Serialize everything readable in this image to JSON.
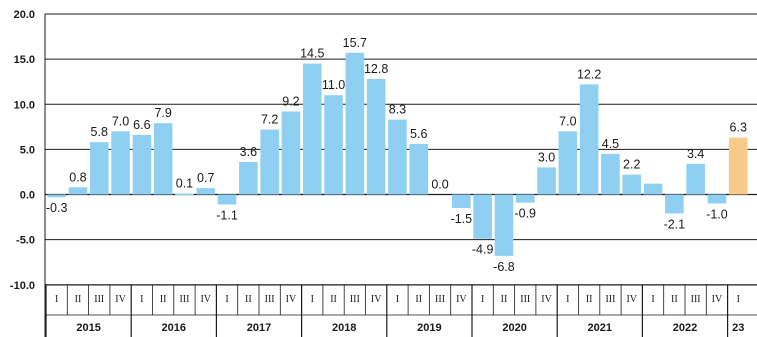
{
  "chart_data": {
    "type": "bar",
    "ylim": [
      -10,
      20
    ],
    "yticks": [
      "20.0",
      "15.0",
      "10.0",
      "5.0",
      "0.0",
      "-5.0",
      "-10.0"
    ],
    "ytick_values": [
      20,
      15,
      10,
      5,
      0,
      -5,
      -10
    ],
    "grid": true,
    "categories": [
      "2015 I",
      "2015 II",
      "2015 III",
      "2015 IV",
      "2016 I",
      "2016 II",
      "2016 III",
      "2016 IV",
      "2017 I",
      "2017 II",
      "2017 III",
      "2017 IV",
      "2018 I",
      "2018 II",
      "2018 III",
      "2018 IV",
      "2019 I",
      "2019 II",
      "2019 III",
      "2019 IV",
      "2020 I",
      "2020 II",
      "2020 III",
      "2020 IV",
      "2021 I",
      "2021 II",
      "2021 III",
      "2021 IV",
      "2022 I",
      "2022 II",
      "2022 III",
      "2022 IV",
      "2023 I"
    ],
    "quarter_labels": [
      "I",
      "II",
      "III",
      "IV",
      "I",
      "II",
      "III",
      "IV",
      "I",
      "II",
      "III",
      "IV",
      "I",
      "II",
      "III",
      "IV",
      "I",
      "II",
      "III",
      "IV",
      "I",
      "II",
      "III",
      "IV",
      "I",
      "II",
      "III",
      "IV",
      "I",
      "II",
      "III",
      "IV",
      "I"
    ],
    "values": [
      -0.3,
      0.8,
      5.8,
      7.0,
      6.6,
      7.9,
      0.1,
      0.7,
      -1.1,
      3.6,
      7.2,
      9.2,
      14.5,
      11.0,
      15.7,
      12.8,
      8.3,
      5.6,
      0.0,
      -1.5,
      -4.9,
      -6.8,
      -0.9,
      3.0,
      7.0,
      12.2,
      4.5,
      2.2,
      1.2,
      -2.1,
      3.4,
      -1.0,
      6.3
    ],
    "data_labels": [
      "-0.3",
      "0.8",
      "5.8",
      "7.0",
      "6.6",
      "7.9",
      "0.1",
      "0.7",
      "-1.1",
      "3.6",
      "7.2",
      "9.2",
      "14.5",
      "11.0",
      "15.7",
      "12.8",
      "8.3",
      "5.6",
      "0.0",
      "-1.5",
      "-4.9",
      "-6.8",
      "-0.9",
      "3.0",
      "7.0",
      "12.2",
      "4.5",
      "2.2",
      "",
      "-2.1",
      "3.4",
      "-1.0",
      "6.3"
    ],
    "years": [
      "2015",
      "2016",
      "2017",
      "2018",
      "2019",
      "2020",
      "2021",
      "2022",
      "23"
    ],
    "colors": {
      "bar": "#8fd0f2",
      "highlight": "#f9c98a",
      "grid": "#1a1a1a",
      "text": "#1a1a1a"
    },
    "highlight_index": 32
  }
}
